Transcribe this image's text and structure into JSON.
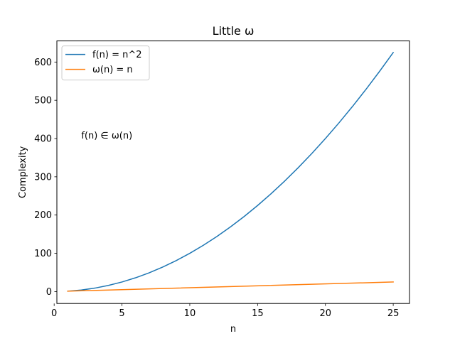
{
  "chart_data": {
    "type": "line",
    "title": "Little ω",
    "xlabel": "n",
    "ylabel": "Complexity",
    "xlim": [
      0.2,
      26.2
    ],
    "ylim": [
      -31.2,
      655.2
    ],
    "xticks": [
      0,
      5,
      10,
      15,
      20,
      25
    ],
    "yticks": [
      0,
      100,
      200,
      300,
      400,
      500,
      600
    ],
    "grid": false,
    "legend_position": "top-left",
    "annotation": {
      "text": "f(n) ∈ ω(n)",
      "x": 2,
      "y": 400
    },
    "series": [
      {
        "name": "f(n) = n^2",
        "color": "#1f77b4",
        "x": [
          1,
          2,
          3,
          4,
          5,
          6,
          7,
          8,
          9,
          10,
          11,
          12,
          13,
          14,
          15,
          16,
          17,
          18,
          19,
          20,
          21,
          22,
          23,
          24,
          25
        ],
        "y": [
          1,
          4,
          9,
          16,
          25,
          36,
          49,
          64,
          81,
          100,
          121,
          144,
          169,
          196,
          225,
          256,
          289,
          324,
          361,
          400,
          441,
          484,
          529,
          576,
          625
        ]
      },
      {
        "name": "ω(n) = n",
        "color": "#ff7f0e",
        "x": [
          1,
          25
        ],
        "y": [
          1,
          25
        ]
      }
    ]
  }
}
